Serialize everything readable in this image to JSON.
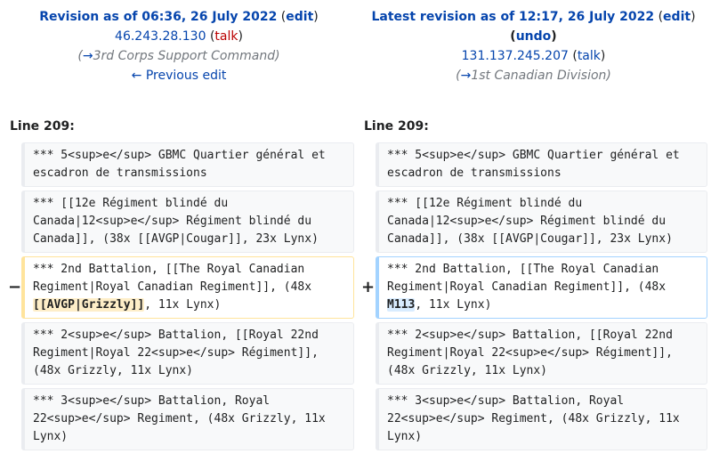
{
  "left_header": {
    "title": "Revision as of 06:36, 26 July 2022",
    "edit": "edit",
    "user_ip": "46.243.28.130",
    "talk": "talk",
    "summary": "3rd Corps Support Command",
    "prev_edit": "← Previous edit"
  },
  "right_header": {
    "title": "Latest revision as of 12:17, 26 July 2022",
    "edit": "edit",
    "undo": "undo",
    "user_ip": "131.137.245.207",
    "talk": "talk",
    "summary": "1st Canadian Division"
  },
  "line_left": "Line 209:",
  "line_right": "Line 209:",
  "markers": {
    "minus": "−",
    "plus": "+"
  },
  "rows": [
    {
      "left": "*** 5<sup>e</sup> GBMC Quartier général et escadron de transmissions",
      "right": "*** 5<sup>e</sup> GBMC Quartier général et escadron de transmissions"
    },
    {
      "left": "*** [[12e Régiment blindé du Canada|12<sup>e</sup> Régiment blindé du Canada]], (38x [[AVGP|Cougar]], 23x Lynx)",
      "right": "*** [[12e Régiment blindé du Canada|12<sup>e</sup> Régiment blindé du Canada]], (38x [[AVGP|Cougar]], 23x Lynx)"
    },
    {
      "left_pre": "*** 2nd Battalion, [[The Royal Canadian Regiment|Royal Canadian Regiment]], (48x ",
      "left_hl": "[[AVGP|Grizzly]]",
      "left_post": ", 11x Lynx)",
      "right_pre": "*** 2nd Battalion, [[The Royal Canadian Regiment|Royal Canadian Regiment]], (48x ",
      "right_hl": "M113",
      "right_post": ", 11x Lynx)"
    },
    {
      "left": "*** 2<sup>e</sup> Battalion, [[Royal 22nd Regiment|Royal 22<sup>e</sup> Régiment]], (48x Grizzly, 11x Lynx)",
      "right": "*** 2<sup>e</sup> Battalion, [[Royal 22nd Regiment|Royal 22<sup>e</sup> Régiment]], (48x Grizzly, 11x Lynx)"
    },
    {
      "left": "*** 3<sup>e</sup> Battalion, Royal 22<sup>e</sup> Regiment, (48x Grizzly, 11x Lynx)",
      "right": "*** 3<sup>e</sup> Battalion, Royal 22<sup>e</sup> Regiment, (48x Grizzly, 11x Lynx)"
    }
  ]
}
